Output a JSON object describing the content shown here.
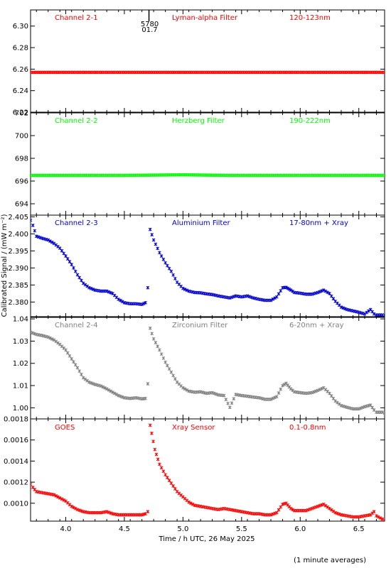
{
  "figure": {
    "xlabel": "Time / h UTC, 26 May 2025",
    "ylabel": "Calibrated Signal / (mW m⁻²)",
    "footnote": "(1 minute averages)",
    "xlim": [
      3.7,
      6.72
    ],
    "xticks": [
      4.0,
      4.5,
      5.0,
      5.5,
      6.0,
      6.5
    ],
    "xtick_labels": [
      "4.0",
      "4.5",
      "5.0",
      "5.5",
      "6.0",
      "6.5"
    ],
    "marker_annotation": {
      "x": 4.71,
      "labels": [
        "5780",
        "01.7"
      ]
    }
  },
  "chart_data": [
    {
      "type": "scatter",
      "channel_label": "Channel 2-1",
      "filter_label": "Lyman-alpha Filter",
      "band_label": "120-123nm",
      "color": "#ff0000",
      "ylim": [
        6.22,
        6.315
      ],
      "yticks": [
        "6.22",
        "6.24",
        "6.26",
        "6.28",
        "6.30"
      ],
      "points": [
        [
          3.7,
          6.257
        ],
        [
          4.0,
          6.257
        ],
        [
          4.5,
          6.257
        ],
        [
          5.0,
          6.257
        ],
        [
          5.5,
          6.257
        ],
        [
          6.0,
          6.257
        ],
        [
          6.5,
          6.257
        ],
        [
          6.72,
          6.257
        ]
      ]
    },
    {
      "type": "scatter",
      "channel_label": "Channel 2-2",
      "filter_label": "Herzberg Filter",
      "band_label": "190-222nm",
      "color": "#00ff00",
      "ylim": [
        693.0,
        702.0
      ],
      "yticks": [
        "694",
        "696",
        "698",
        "700",
        "702"
      ],
      "points": [
        [
          3.7,
          696.5
        ],
        [
          4.0,
          696.5
        ],
        [
          4.5,
          696.5
        ],
        [
          5.0,
          696.55
        ],
        [
          5.4,
          696.5
        ],
        [
          6.0,
          696.5
        ],
        [
          6.5,
          696.5
        ],
        [
          6.72,
          696.5
        ]
      ]
    },
    {
      "type": "scatter",
      "channel_label": "Channel 2-3",
      "filter_label": "Aluminium Filter",
      "band_label": "17-80nm + Xray",
      "color": "#0000cc",
      "ylim": [
        2.3755,
        2.4055
      ],
      "yticks": [
        "2.380",
        "2.385",
        "2.390",
        "2.395",
        "2.400",
        "2.405"
      ],
      "points": [
        [
          3.7,
          2.404
        ],
        [
          3.72,
          2.4025
        ],
        [
          3.75,
          2.3993
        ],
        [
          3.8,
          2.3987
        ],
        [
          3.85,
          2.3982
        ],
        [
          3.9,
          2.3972
        ],
        [
          3.95,
          2.3958
        ],
        [
          4.0,
          2.3935
        ],
        [
          4.05,
          2.391
        ],
        [
          4.1,
          2.388
        ],
        [
          4.15,
          2.3855
        ],
        [
          4.2,
          2.3842
        ],
        [
          4.25,
          2.3835
        ],
        [
          4.3,
          2.3832
        ],
        [
          4.35,
          2.3832
        ],
        [
          4.4,
          2.3825
        ],
        [
          4.45,
          2.3808
        ],
        [
          4.5,
          2.3798
        ],
        [
          4.55,
          2.3795
        ],
        [
          4.6,
          2.3795
        ],
        [
          4.65,
          2.3793
        ],
        [
          4.68,
          2.3798
        ],
        [
          4.7,
          2.3842
        ],
        [
          4.72,
          2.4013
        ],
        [
          4.75,
          2.3982
        ],
        [
          4.8,
          2.3945
        ],
        [
          4.85,
          2.3915
        ],
        [
          4.9,
          2.389
        ],
        [
          4.95,
          2.3858
        ],
        [
          5.0,
          2.384
        ],
        [
          5.05,
          2.3832
        ],
        [
          5.1,
          2.3828
        ],
        [
          5.15,
          2.3827
        ],
        [
          5.2,
          2.3824
        ],
        [
          5.25,
          2.3822
        ],
        [
          5.3,
          2.3818
        ],
        [
          5.35,
          2.3815
        ],
        [
          5.4,
          2.3812
        ],
        [
          5.45,
          2.3818
        ],
        [
          5.5,
          2.3815
        ],
        [
          5.55,
          2.3818
        ],
        [
          5.6,
          2.3812
        ],
        [
          5.65,
          2.3808
        ],
        [
          5.7,
          2.3805
        ],
        [
          5.75,
          2.3805
        ],
        [
          5.8,
          2.3815
        ],
        [
          5.85,
          2.3842
        ],
        [
          5.88,
          2.3843
        ],
        [
          5.92,
          2.3835
        ],
        [
          5.95,
          2.3828
        ],
        [
          6.0,
          2.3826
        ],
        [
          6.05,
          2.3823
        ],
        [
          6.1,
          2.3823
        ],
        [
          6.15,
          2.3828
        ],
        [
          6.2,
          2.3835
        ],
        [
          6.25,
          2.3825
        ],
        [
          6.3,
          2.3802
        ],
        [
          6.35,
          2.3785
        ],
        [
          6.4,
          2.3778
        ],
        [
          6.45,
          2.3774
        ],
        [
          6.5,
          2.377
        ],
        [
          6.55,
          2.3765
        ],
        [
          6.6,
          2.3778
        ],
        [
          6.63,
          2.3765
        ],
        [
          6.65,
          2.3762
        ],
        [
          6.7,
          2.3762
        ],
        [
          6.72,
          2.3762
        ]
      ]
    },
    {
      "type": "scatter",
      "channel_label": "Channel 2-4",
      "filter_label": "Zirconium Filter",
      "band_label": "6-20nm + Xray",
      "color": "#808080",
      "ylim": [
        0.995,
        1.041
      ],
      "yticks": [
        "1.00",
        "1.01",
        "1.02",
        "1.03",
        "1.04"
      ],
      "points": [
        [
          3.7,
          1.034
        ],
        [
          3.75,
          1.033
        ],
        [
          3.8,
          1.0325
        ],
        [
          3.85,
          1.0318
        ],
        [
          3.9,
          1.0305
        ],
        [
          3.95,
          1.0285
        ],
        [
          4.0,
          1.026
        ],
        [
          4.05,
          1.022
        ],
        [
          4.1,
          1.018
        ],
        [
          4.15,
          1.0135
        ],
        [
          4.2,
          1.0115
        ],
        [
          4.25,
          1.0105
        ],
        [
          4.3,
          1.0098
        ],
        [
          4.35,
          1.0085
        ],
        [
          4.4,
          1.007
        ],
        [
          4.45,
          1.0055
        ],
        [
          4.5,
          1.0045
        ],
        [
          4.55,
          1.0042
        ],
        [
          4.6,
          1.0045
        ],
        [
          4.65,
          1.004
        ],
        [
          4.68,
          1.0042
        ],
        [
          4.7,
          1.0108
        ],
        [
          4.72,
          1.0358
        ],
        [
          4.75,
          1.031
        ],
        [
          4.8,
          1.026
        ],
        [
          4.85,
          1.0205
        ],
        [
          4.9,
          1.016
        ],
        [
          4.95,
          1.0115
        ],
        [
          5.0,
          1.009
        ],
        [
          5.05,
          1.0075
        ],
        [
          5.1,
          1.007
        ],
        [
          5.15,
          1.0072
        ],
        [
          5.2,
          1.0065
        ],
        [
          5.25,
          1.0068
        ],
        [
          5.3,
          1.0058
        ],
        [
          5.35,
          1.0055
        ],
        [
          5.4,
          1.0002
        ],
        [
          5.45,
          1.006
        ],
        [
          5.5,
          1.0055
        ],
        [
          5.55,
          1.0052
        ],
        [
          5.6,
          1.0048
        ],
        [
          5.65,
          1.0045
        ],
        [
          5.7,
          1.0038
        ],
        [
          5.75,
          1.0038
        ],
        [
          5.8,
          1.005
        ],
        [
          5.85,
          1.01
        ],
        [
          5.88,
          1.011
        ],
        [
          5.92,
          1.0085
        ],
        [
          5.95,
          1.0072
        ],
        [
          6.0,
          1.0068
        ],
        [
          6.05,
          1.0065
        ],
        [
          6.1,
          1.0068
        ],
        [
          6.15,
          1.0078
        ],
        [
          6.2,
          1.009
        ],
        [
          6.25,
          1.0065
        ],
        [
          6.3,
          1.003
        ],
        [
          6.35,
          1.001
        ],
        [
          6.4,
          1.0002
        ],
        [
          6.45,
          0.9995
        ],
        [
          6.5,
          0.9995
        ],
        [
          6.55,
          1.0005
        ],
        [
          6.6,
          1.0012
        ],
        [
          6.63,
          0.999
        ],
        [
          6.65,
          0.998
        ],
        [
          6.7,
          0.998
        ],
        [
          6.72,
          0.9975
        ]
      ]
    },
    {
      "type": "scatter",
      "channel_label": "GOES",
      "filter_label": "Xray Sensor",
      "band_label": "0.1-0.8nm",
      "color": "#ff0000",
      "ylim": [
        0.00083,
        0.0018
      ],
      "yticks": [
        "0.0010",
        "0.0012",
        "0.0014",
        "0.0016",
        "0.0018"
      ],
      "points": [
        [
          3.7,
          0.00118
        ],
        [
          3.72,
          0.00115
        ],
        [
          3.75,
          0.00111
        ],
        [
          3.8,
          0.0011
        ],
        [
          3.85,
          0.00109
        ],
        [
          3.9,
          0.00108
        ],
        [
          3.95,
          0.00105
        ],
        [
          4.0,
          0.00102
        ],
        [
          4.05,
          0.00097
        ],
        [
          4.1,
          0.00094
        ],
        [
          4.15,
          0.00092
        ],
        [
          4.2,
          0.00091
        ],
        [
          4.25,
          0.00091
        ],
        [
          4.3,
          0.00091
        ],
        [
          4.35,
          0.00092
        ],
        [
          4.4,
          0.0009
        ],
        [
          4.45,
          0.00089
        ],
        [
          4.5,
          0.00089
        ],
        [
          4.55,
          0.00089
        ],
        [
          4.6,
          0.00089
        ],
        [
          4.65,
          0.00089
        ],
        [
          4.68,
          0.0009
        ],
        [
          4.7,
          0.00092
        ],
        [
          4.72,
          0.00174
        ],
        [
          4.76,
          0.00151
        ],
        [
          4.8,
          0.00137
        ],
        [
          4.85,
          0.00127
        ],
        [
          4.9,
          0.00119
        ],
        [
          4.95,
          0.00111
        ],
        [
          5.0,
          0.00106
        ],
        [
          5.05,
          0.00101
        ],
        [
          5.1,
          0.00098
        ],
        [
          5.15,
          0.00097
        ],
        [
          5.2,
          0.00096
        ],
        [
          5.25,
          0.00095
        ],
        [
          5.3,
          0.00094
        ],
        [
          5.35,
          0.00095
        ],
        [
          5.4,
          0.00094
        ],
        [
          5.45,
          0.00093
        ],
        [
          5.5,
          0.00092
        ],
        [
          5.55,
          0.00091
        ],
        [
          5.6,
          0.0009
        ],
        [
          5.65,
          0.0009
        ],
        [
          5.7,
          0.00089
        ],
        [
          5.75,
          0.00089
        ],
        [
          5.8,
          0.00091
        ],
        [
          5.85,
          0.00099
        ],
        [
          5.88,
          0.001
        ],
        [
          5.92,
          0.00095
        ],
        [
          5.95,
          0.00093
        ],
        [
          6.0,
          0.00093
        ],
        [
          6.05,
          0.00093
        ],
        [
          6.1,
          0.00095
        ],
        [
          6.15,
          0.00097
        ],
        [
          6.2,
          0.00099
        ],
        [
          6.25,
          0.00095
        ],
        [
          6.3,
          0.00091
        ],
        [
          6.35,
          0.00089
        ],
        [
          6.4,
          0.00088
        ],
        [
          6.45,
          0.00087
        ],
        [
          6.5,
          0.00087
        ],
        [
          6.55,
          0.00088
        ],
        [
          6.6,
          0.00089
        ],
        [
          6.63,
          0.00092
        ],
        [
          6.65,
          0.00088
        ],
        [
          6.7,
          0.00085
        ],
        [
          6.72,
          0.00084
        ]
      ]
    }
  ]
}
